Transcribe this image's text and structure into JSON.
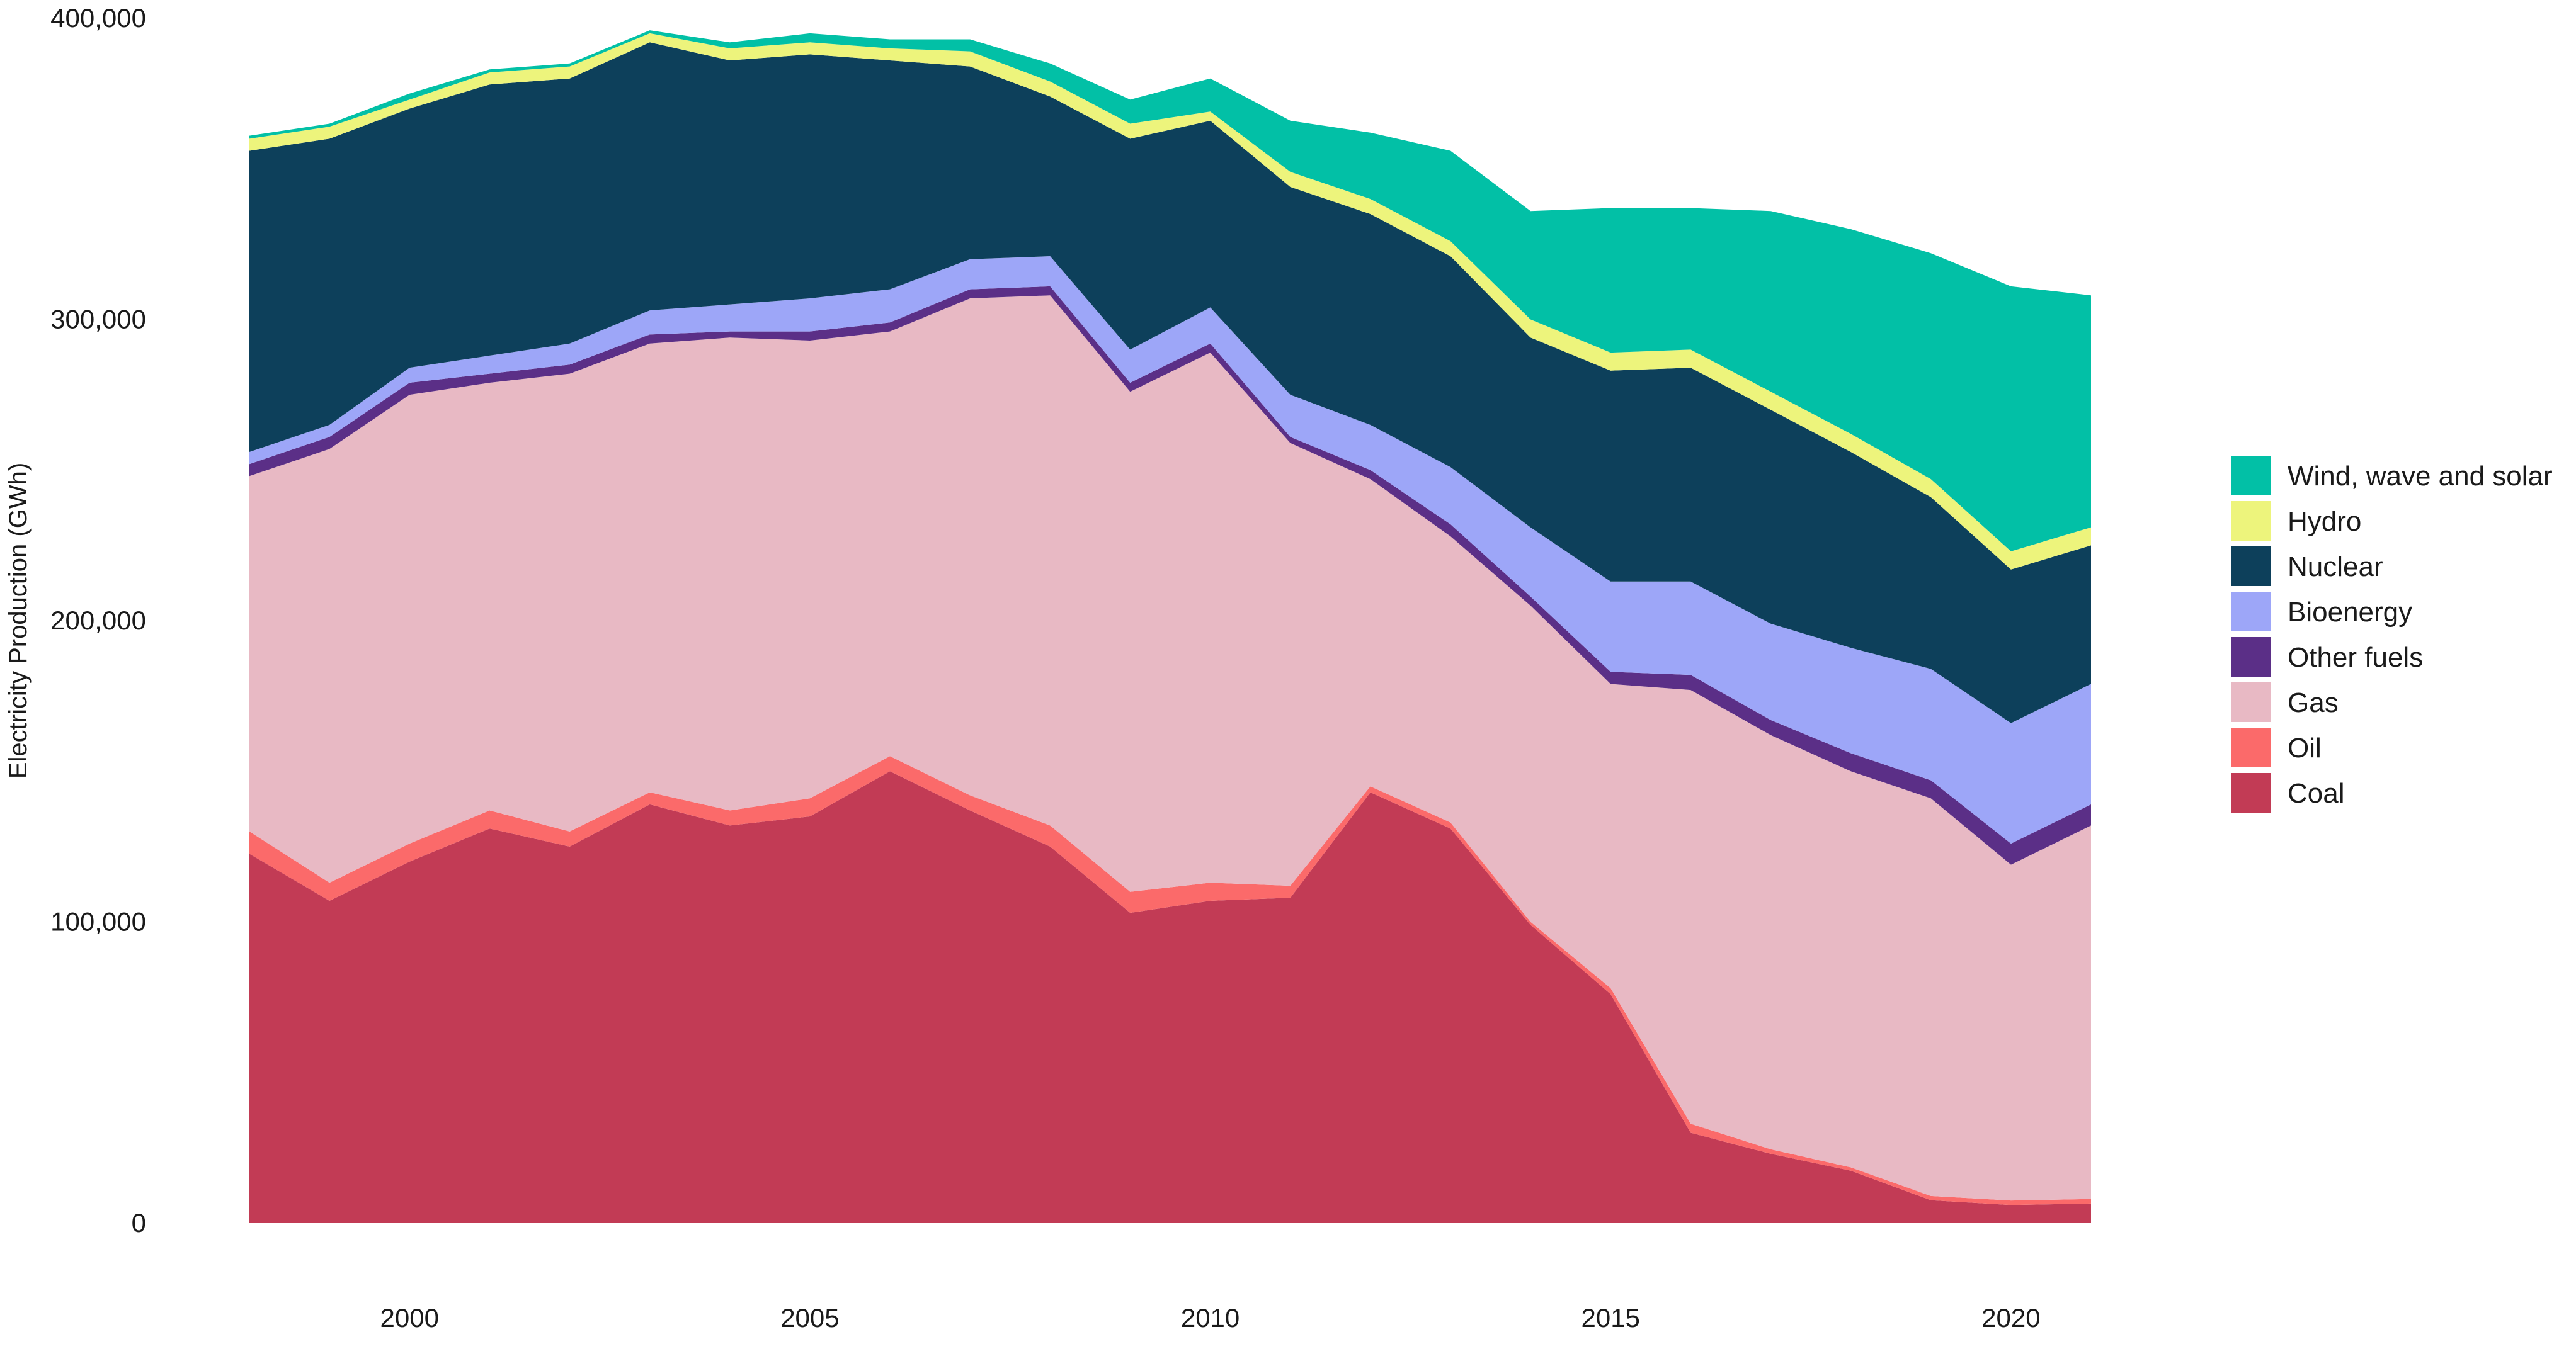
{
  "chart_data": {
    "type": "area",
    "stacked": true,
    "title": "",
    "xlabel": "",
    "ylabel": "Electricity Production (GWh)",
    "ylim": [
      0,
      400000
    ],
    "xlim": [
      1998,
      2021
    ],
    "grid": false,
    "legend_position": "right",
    "y_ticks": [
      0,
      100000,
      200000,
      300000,
      400000
    ],
    "y_tick_labels": [
      "0",
      "100,000",
      "200,000",
      "300,000",
      "400,000"
    ],
    "x_ticks": [
      2000,
      2005,
      2010,
      2015,
      2020
    ],
    "x_tick_labels": [
      "2000",
      "2005",
      "2010",
      "2015",
      "2020"
    ],
    "x": [
      1998,
      1999,
      2000,
      2001,
      2002,
      2003,
      2004,
      2005,
      2006,
      2007,
      2008,
      2009,
      2010,
      2011,
      2012,
      2013,
      2014,
      2015,
      2016,
      2017,
      2018,
      2019,
      2020,
      2021
    ],
    "series": [
      {
        "name": "Coal",
        "color": "#c23b55",
        "values": [
          122600,
          107000,
          120000,
          131000,
          125000,
          139000,
          132000,
          135000,
          150000,
          137000,
          125000,
          103000,
          107000,
          108000,
          143000,
          131000,
          99000,
          76000,
          30000,
          23000,
          17400,
          7600,
          6000,
          6500
        ]
      },
      {
        "name": "Oil",
        "color": "#fb6a6a",
        "values": [
          7400,
          6000,
          6000,
          6000,
          5000,
          4000,
          5000,
          6000,
          5000,
          5000,
          7000,
          7000,
          6000,
          4000,
          2000,
          2000,
          1000,
          2000,
          3000,
          1500,
          1100,
          1400,
          1500,
          1500
        ]
      },
      {
        "name": "Gas",
        "color": "#e8b9c4",
        "values": [
          118000,
          144000,
          149000,
          142000,
          152000,
          149000,
          157000,
          152000,
          141000,
          165000,
          176000,
          166000,
          176000,
          147000,
          102000,
          95000,
          105000,
          101000,
          144000,
          137500,
          131500,
          132000,
          111500,
          124000
        ]
      },
      {
        "name": "Other fuels",
        "color": "#5b2f87",
        "values": [
          4000,
          4000,
          4000,
          3000,
          3000,
          3000,
          2000,
          3000,
          3000,
          3000,
          3000,
          3000,
          3000,
          2000,
          3000,
          4000,
          3000,
          4000,
          5000,
          5000,
          6000,
          6000,
          7000,
          7000
        ]
      },
      {
        "name": "Bioenergy",
        "color": "#9da6f8",
        "values": [
          4000,
          4000,
          5000,
          6000,
          7000,
          8000,
          9000,
          11000,
          11000,
          10000,
          10000,
          11000,
          12000,
          14000,
          15000,
          19000,
          23000,
          30000,
          31000,
          32000,
          35000,
          37000,
          40000,
          40000
        ]
      },
      {
        "name": "Nuclear",
        "color": "#0d405b",
        "values": [
          100000,
          95000,
          86000,
          90000,
          88000,
          89000,
          81000,
          81000,
          76000,
          64000,
          53000,
          70000,
          62000,
          69000,
          70000,
          70000,
          63000,
          70000,
          71000,
          71000,
          65000,
          57000,
          51000,
          46000
        ]
      },
      {
        "name": "Hydro",
        "color": "#edf47c",
        "values": [
          4000,
          4000,
          3000,
          4000,
          4000,
          3000,
          4000,
          4000,
          4000,
          5000,
          5000,
          5000,
          3000,
          5000,
          5000,
          5000,
          6000,
          6000,
          6000,
          6000,
          6000,
          6000,
          6000,
          6000
        ]
      },
      {
        "name": "Wind, wave and solar",
        "color": "#02c0a6",
        "values": [
          1000,
          1000,
          2000,
          1000,
          1000,
          1000,
          2000,
          3000,
          3000,
          4000,
          6000,
          8000,
          11000,
          17000,
          22000,
          30000,
          36000,
          48000,
          47000,
          60000,
          68000,
          75000,
          88000,
          77000
        ]
      }
    ]
  }
}
